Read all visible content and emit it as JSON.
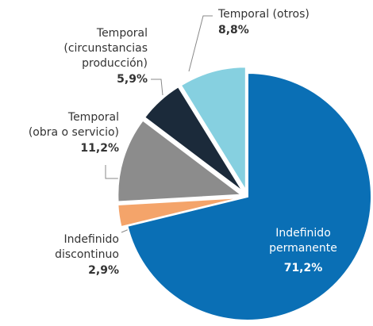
{
  "chart_data": {
    "type": "pie",
    "categories": [
      [
        "Indefinido",
        "permanente"
      ],
      [
        "Indefinido",
        "discontinuo"
      ],
      [
        "Temporal",
        "(obra o servicio)"
      ],
      [
        "Temporal",
        "(circunstancias",
        "producción)"
      ],
      [
        "Temporal (otros)"
      ]
    ],
    "values": [
      71.2,
      2.9,
      11.2,
      5.9,
      8.8
    ],
    "value_labels": [
      "71,2%",
      "2,9%",
      "11,2%",
      "5,9%",
      "8,8%"
    ],
    "colors": [
      "#0a6fb5",
      "#f4a46a",
      "#8c8c8c",
      "#1b2a3a",
      "#86d0e0"
    ]
  }
}
